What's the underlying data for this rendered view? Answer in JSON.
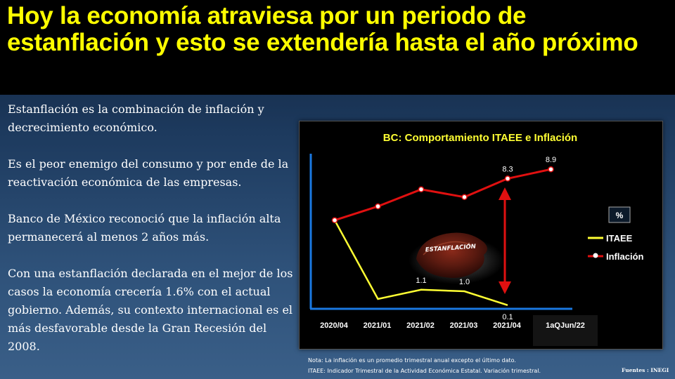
{
  "header": {
    "title": "Hoy la economía atraviesa por un periodo de estanflación y esto se extendería hasta el año próximo"
  },
  "body": {
    "paragraphs": [
      "Estanflación es la combinación de inflación y decrecimiento económico.",
      "Es el peor enemigo del consumo y por ende de la reactivación económica de las empresas.",
      "Banco de México reconoció que la inflación alta permanecerá al menos 2 años más.",
      "Con una estanflación declarada en el mejor de los casos la economía crecería 1.6% con el actual gobierno. Además, su contexto internacional es el más desfavorable desde la Gran Recesión del 2008."
    ]
  },
  "chart_data": {
    "type": "line",
    "title": "BC: Comportamiento ITAEE e Inflación",
    "categories": [
      "2020/04",
      "2021/01",
      "2021/02",
      "2021/03",
      "2021/04",
      "1aQJun/22"
    ],
    "series": [
      {
        "name": "ITAEE",
        "color": "#ffff33",
        "values": [
          5.6,
          0.5,
          1.1,
          1.0,
          0.1,
          null
        ],
        "data_labels": [
          null,
          null,
          "1.1",
          "1.0",
          "0.1",
          null
        ]
      },
      {
        "name": "Inflación",
        "color": "#e01010",
        "values": [
          5.6,
          6.5,
          7.6,
          7.1,
          8.3,
          8.9
        ],
        "data_labels": [
          null,
          null,
          null,
          null,
          "8.3",
          "8.9"
        ]
      }
    ],
    "unit_box": "%",
    "annotation_image_text": "ESTANFLACIÓN",
    "legend_position": "right",
    "ylim": [
      0,
      10
    ],
    "grid": false
  },
  "footer": {
    "note_line1": "Nota: La inflación es un promedio trimestral anual excepto el último dato.",
    "note_line2": "ITAEE:  Indicador Trimestral de la Actividad Económica Estatal. Variación  trimestral.",
    "source": "Fuentes : INEGI"
  }
}
